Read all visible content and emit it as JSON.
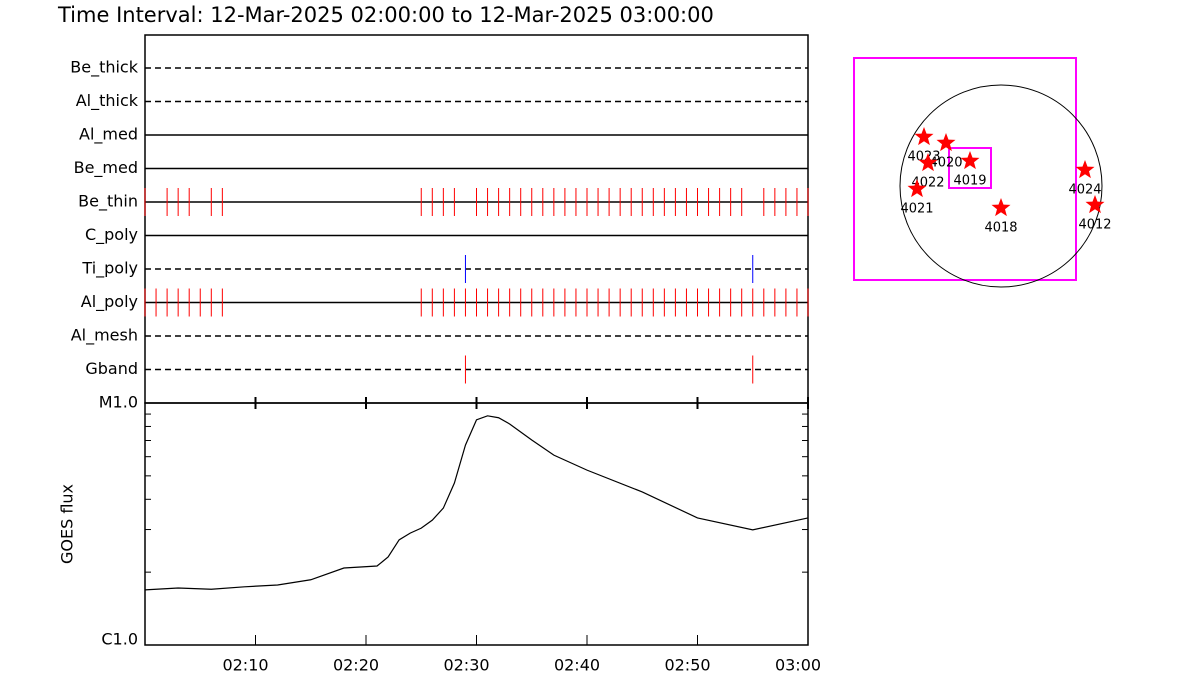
{
  "title": "Time Interval: 12-Mar-2025 02:00:00 to 12-Mar-2025 03:00:00",
  "chart_data": [
    {
      "type": "event",
      "xlim": [
        "02:00",
        "03:00"
      ],
      "filters": [
        {
          "name": "Be_thick",
          "line_style": "dashed",
          "color": "#ff0000",
          "times": []
        },
        {
          "name": "Al_thick",
          "line_style": "dashed",
          "color": "#ff0000",
          "times": []
        },
        {
          "name": "Al_med",
          "line_style": "solid",
          "color": "#ff0000",
          "times": []
        },
        {
          "name": "Be_med",
          "line_style": "solid",
          "color": "#ff0000",
          "times": []
        },
        {
          "name": "Be_thin",
          "line_style": "solid",
          "color": "#ff0000",
          "times": [
            "02:00",
            "02:02",
            "02:03",
            "02:04",
            "02:06",
            "02:07",
            "02:25",
            "02:26",
            "02:27",
            "02:28",
            "02:30",
            "02:31",
            "02:32",
            "02:33",
            "02:34",
            "02:35",
            "02:36",
            "02:37",
            "02:38",
            "02:39",
            "02:40",
            "02:41",
            "02:42",
            "02:43",
            "02:44",
            "02:45",
            "02:46",
            "02:47",
            "02:48",
            "02:49",
            "02:50",
            "02:51",
            "02:52",
            "02:53",
            "02:54",
            "02:56",
            "02:57",
            "02:58",
            "02:59",
            "03:00"
          ]
        },
        {
          "name": "C_poly",
          "line_style": "solid",
          "color": "#ff0000",
          "times": []
        },
        {
          "name": "Ti_poly",
          "line_style": "dashed",
          "color": "#0000ff",
          "times": [
            "02:29",
            "02:55"
          ]
        },
        {
          "name": "Al_poly",
          "line_style": "solid",
          "color": "#ff0000",
          "times": [
            "02:00",
            "02:01",
            "02:02",
            "02:03",
            "02:04",
            "02:05",
            "02:06",
            "02:07",
            "02:25",
            "02:26",
            "02:27",
            "02:28",
            "02:29",
            "02:30",
            "02:31",
            "02:32",
            "02:33",
            "02:34",
            "02:35",
            "02:36",
            "02:37",
            "02:38",
            "02:39",
            "02:40",
            "02:41",
            "02:42",
            "02:43",
            "02:44",
            "02:45",
            "02:46",
            "02:47",
            "02:48",
            "02:49",
            "02:50",
            "02:51",
            "02:52",
            "02:53",
            "02:54",
            "02:55",
            "02:56",
            "02:57",
            "02:58",
            "02:59",
            "03:00"
          ]
        },
        {
          "name": "Al_mesh",
          "line_style": "dashed",
          "color": "#ff0000",
          "times": []
        },
        {
          "name": "Gband",
          "line_style": "dashed",
          "color": "#ff0000",
          "times": [
            "02:29",
            "02:55"
          ]
        }
      ]
    },
    {
      "type": "line",
      "ylabel": "GOES flux",
      "color": "#000000",
      "log_scale": true,
      "xlim": [
        "02:00",
        "03:00"
      ],
      "xticks": [
        "02:10",
        "02:20",
        "02:30",
        "02:40",
        "02:50",
        "03:00"
      ],
      "ylim": [
        1e-06,
        1e-05
      ],
      "yticks": [
        {
          "value": 1e-06,
          "label": "C1.0"
        },
        {
          "value": 1e-05,
          "label": "M1.0"
        }
      ],
      "yminor": [
        2e-06,
        3e-06,
        4e-06,
        5e-06,
        6e-06,
        7e-06,
        8e-06,
        9e-06
      ],
      "x": [
        "02:00",
        "02:03",
        "02:06",
        "02:09",
        "02:12",
        "02:15",
        "02:18",
        "02:21",
        "02:22",
        "02:23",
        "02:24",
        "02:25",
        "02:26",
        "02:27",
        "02:28",
        "02:29",
        "02:30",
        "02:31",
        "02:32",
        "02:33",
        "02:35",
        "02:37",
        "02:40",
        "02:45",
        "02:50",
        "02:55",
        "03:00"
      ],
      "values": [
        1.69e-06,
        1.72e-06,
        1.7e-06,
        1.74e-06,
        1.77e-06,
        1.86e-06,
        2.08e-06,
        2.12e-06,
        2.31e-06,
        2.72e-06,
        2.9e-06,
        3.04e-06,
        3.28e-06,
        3.68e-06,
        4.67e-06,
        6.7e-06,
        8.52e-06,
        8.85e-06,
        8.69e-06,
        8.19e-06,
        7.03e-06,
        6.09e-06,
        5.28e-06,
        4.29e-06,
        3.35e-06,
        2.99e-06,
        3.35e-06
      ]
    }
  ],
  "map": {
    "regions": [
      "4023",
      "4020",
      "4019",
      "4022",
      "4021",
      "4018",
      "4024",
      "4012"
    ]
  }
}
